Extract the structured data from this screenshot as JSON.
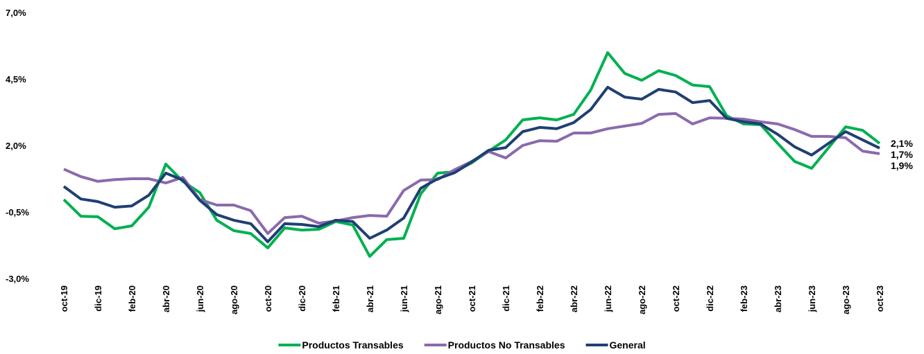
{
  "chart_data": {
    "type": "line",
    "categories": [
      "oct-19",
      null,
      "dic-19",
      null,
      "feb-20",
      null,
      "abr-20",
      null,
      "jun-20",
      null,
      "ago-20",
      null,
      "oct-20",
      null,
      "dic-20",
      null,
      "feb-21",
      null,
      "abr-21",
      null,
      "jun-21",
      null,
      "ago-21",
      null,
      "oct-21",
      null,
      "dic-21",
      null,
      "feb-22",
      null,
      "abr-22",
      null,
      "jun-22",
      null,
      "ago-22",
      null,
      "oct-22",
      null,
      "dic-22",
      null,
      "feb-23",
      null,
      "abr-23",
      null,
      "jun-23",
      null,
      "ago-23",
      null,
      "oct-23"
    ],
    "ylim": [
      -3,
      7
    ],
    "yticks": [
      {
        "value": -3,
        "label": "-3,0%"
      },
      {
        "value": -0.5,
        "label": "-0,5%"
      },
      {
        "value": 2,
        "label": "2,0%"
      },
      {
        "value": 4.5,
        "label": "4,5%"
      },
      {
        "value": 7,
        "label": "7,0%"
      }
    ],
    "grid": false,
    "legend": "bottom",
    "series": [
      {
        "name": "Productos Transables",
        "color": "#00b050",
        "values": [
          -0.03,
          -0.66,
          -0.68,
          -1.13,
          -1.02,
          -0.32,
          1.3,
          0.65,
          0.23,
          -0.81,
          -1.2,
          -1.31,
          -1.85,
          -1.1,
          -1.18,
          -1.15,
          -0.86,
          -0.99,
          -2.17,
          -1.54,
          -1.49,
          0.18,
          0.96,
          1.01,
          1.35,
          1.79,
          2.21,
          2.96,
          3.04,
          2.96,
          3.17,
          4.08,
          5.49,
          4.71,
          4.45,
          4.81,
          4.63,
          4.27,
          4.21,
          3.12,
          2.81,
          2.78,
          2.08,
          1.4,
          1.14,
          1.92,
          2.7,
          2.57,
          2.08
        ],
        "value_labels": [
          null,
          null,
          null,
          null,
          null,
          null,
          null,
          null,
          null,
          null,
          null,
          null,
          null,
          null,
          null,
          null,
          null,
          null,
          null,
          null,
          null,
          null,
          null,
          null,
          null,
          null,
          null,
          null,
          null,
          null,
          null,
          null,
          null,
          null,
          null,
          null,
          null,
          null,
          null,
          null,
          null,
          null,
          null,
          null,
          null,
          null,
          null,
          null,
          "2,1%"
        ]
      },
      {
        "name": "Productos No Transables",
        "color": "#8a6aac",
        "values": [
          1.11,
          0.83,
          0.65,
          0.72,
          0.75,
          0.75,
          0.59,
          0.8,
          -0.03,
          -0.24,
          -0.24,
          -0.45,
          -1.31,
          -0.71,
          -0.66,
          -0.92,
          -0.84,
          -0.71,
          -0.63,
          -0.66,
          0.31,
          0.7,
          0.72,
          1.09,
          1.4,
          1.77,
          1.53,
          2.0,
          2.18,
          2.16,
          2.47,
          2.47,
          2.63,
          2.73,
          2.83,
          3.17,
          3.2,
          2.81,
          3.04,
          3.02,
          2.99,
          2.89,
          2.81,
          2.6,
          2.34,
          2.34,
          2.29,
          1.79,
          1.69
        ],
        "value_labels": [
          null,
          null,
          null,
          null,
          null,
          null,
          null,
          null,
          null,
          null,
          null,
          null,
          null,
          null,
          null,
          null,
          null,
          null,
          null,
          null,
          null,
          null,
          null,
          null,
          null,
          null,
          null,
          null,
          null,
          null,
          null,
          null,
          null,
          null,
          null,
          null,
          null,
          null,
          null,
          null,
          null,
          null,
          null,
          null,
          null,
          null,
          null,
          null,
          "1,7%"
        ]
      },
      {
        "name": "General",
        "color": "#1f3f73",
        "values": [
          0.46,
          -0.01,
          -0.11,
          -0.32,
          -0.27,
          0.13,
          0.96,
          0.7,
          -0.06,
          -0.6,
          -0.81,
          -0.94,
          -1.62,
          -0.94,
          -0.97,
          -1.05,
          -0.81,
          -0.86,
          -1.49,
          -1.18,
          -0.73,
          0.39,
          0.75,
          0.98,
          1.38,
          1.82,
          1.92,
          2.52,
          2.68,
          2.63,
          2.86,
          3.35,
          4.19,
          3.82,
          3.74,
          4.11,
          4.01,
          3.61,
          3.69,
          3.02,
          2.89,
          2.81,
          2.42,
          1.95,
          1.64,
          2.08,
          2.52,
          2.21,
          1.9
        ],
        "value_labels": [
          null,
          null,
          null,
          null,
          null,
          null,
          null,
          null,
          null,
          null,
          null,
          null,
          null,
          null,
          null,
          null,
          null,
          null,
          null,
          null,
          null,
          null,
          null,
          null,
          null,
          null,
          null,
          null,
          null,
          null,
          null,
          null,
          null,
          null,
          null,
          null,
          null,
          null,
          null,
          null,
          null,
          null,
          null,
          null,
          null,
          null,
          null,
          null,
          "1,9%"
        ]
      }
    ]
  }
}
